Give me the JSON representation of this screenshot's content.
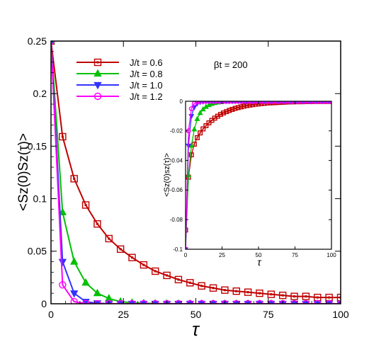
{
  "chart_data": [
    {
      "type": "line",
      "panel": "main",
      "xlabel": "τ",
      "ylabel": "<Sz(0)Sz(τ)>",
      "xlim": [
        0,
        100
      ],
      "ylim": [
        0,
        0.25
      ],
      "xticks": [
        "0",
        "25",
        "50",
        "75",
        "100"
      ],
      "yticks": [
        "0",
        "0.05",
        "0.1",
        "0.15",
        "0.2",
        "0.25"
      ],
      "annotation": "βt = 200",
      "legend_position": "top-left",
      "grid": false,
      "x": [
        0,
        4,
        8,
        12,
        16,
        20,
        24,
        28,
        32,
        36,
        40,
        44,
        48,
        52,
        56,
        60,
        64,
        68,
        72,
        76,
        80,
        84,
        88,
        92,
        96,
        100
      ],
      "series": [
        {
          "name": "J/t = 0.6",
          "color": "#c00000",
          "marker": "square",
          "values": [
            0.25,
            0.159,
            0.119,
            0.094,
            0.076,
            0.062,
            0.052,
            0.044,
            0.037,
            0.031,
            0.027,
            0.023,
            0.02,
            0.017,
            0.015,
            0.013,
            0.012,
            0.011,
            0.01,
            0.009,
            0.008,
            0.007,
            0.007,
            0.006,
            0.006,
            0.006
          ]
        },
        {
          "name": "J/t = 0.8",
          "color": "#00c000",
          "marker": "triangle-up",
          "values": [
            0.25,
            0.087,
            0.04,
            0.02,
            0.01,
            0.005,
            0.002,
            0.001,
            0.0005,
            0.0002,
            0.0001,
            0,
            0,
            0,
            0,
            0,
            0,
            0,
            0,
            0,
            0,
            0,
            0,
            0,
            0,
            0
          ]
        },
        {
          "name": "J/t = 1.0",
          "color": "#3333ff",
          "marker": "triangle-down",
          "values": [
            0.25,
            0.04,
            0.01,
            0.002,
            0.0005,
            0.0001,
            0,
            0,
            0,
            0,
            0,
            0,
            0,
            0,
            0,
            0,
            0,
            0,
            0,
            0,
            0,
            0,
            0,
            0,
            0,
            0
          ]
        },
        {
          "name": "J/t = 1.2",
          "color": "#ff00ff",
          "marker": "circle",
          "values": [
            0.25,
            0.018,
            0.002,
            0.0002,
            0,
            0,
            0,
            0,
            0,
            0,
            0,
            0,
            0,
            0,
            0,
            0,
            0,
            0,
            0,
            0,
            0,
            0,
            0,
            0,
            0,
            0
          ]
        }
      ]
    },
    {
      "type": "line",
      "panel": "inset",
      "xlabel": "τ",
      "ylabel": "<Sz(0)sz(τ)>",
      "xlim": [
        0,
        100
      ],
      "ylim": [
        -0.1,
        0
      ],
      "xticks": [
        "0",
        "25",
        "50",
        "75",
        "100"
      ],
      "yticks": [
        "-0.1",
        "-0.08",
        "-0.06",
        "-0.04",
        "-0.02",
        "0"
      ],
      "x": [
        0,
        2,
        4,
        6,
        8,
        10,
        12,
        14,
        16,
        18,
        20,
        22,
        24,
        26,
        28,
        30,
        32,
        34,
        36,
        38,
        40,
        42,
        44,
        46,
        48,
        50,
        52,
        54,
        56,
        58,
        60,
        62,
        64,
        66,
        68,
        70,
        72,
        74,
        76,
        78,
        80,
        82,
        84,
        86,
        88,
        90,
        92,
        94,
        96,
        98,
        100
      ],
      "series": [
        {
          "name": "J/t = 0.6",
          "color": "#c00000",
          "marker": "square",
          "values": [
            -0.087,
            -0.0513,
            -0.0362,
            -0.029,
            -0.0246,
            -0.0214,
            -0.0187,
            -0.0165,
            -0.0146,
            -0.0129,
            -0.0114,
            -0.0101,
            -0.0089,
            -0.0079,
            -0.007,
            -0.0062,
            -0.0055,
            -0.0048,
            -0.0043,
            -0.0038,
            -0.0033,
            -0.0029,
            -0.0026,
            -0.0023,
            -0.002,
            -0.0018,
            -0.0016,
            -0.0014,
            -0.0012,
            -0.0011,
            -0.001,
            -0.0009,
            -0.0008,
            -0.0007,
            -0.0006,
            -0.0005,
            -0.0004,
            -0.0004,
            -0.0003,
            -0.0003,
            -0.0003,
            -0.0002,
            -0.0002,
            -0.0002,
            -0.0001,
            -0.0001,
            -0.0001,
            -0.0001,
            -0.0001,
            -0.0001,
            -0.0001
          ]
        },
        {
          "name": "J/t = 0.8",
          "color": "#00c000",
          "marker": "triangle-up",
          "values": [
            -0.1,
            -0.05,
            -0.03,
            -0.019,
            -0.012,
            -0.008,
            -0.0055,
            -0.0038,
            -0.0026,
            -0.0018,
            -0.0012,
            -0.0008,
            -0.0005,
            -0.0003,
            -0.0002,
            -0.0001,
            0,
            0,
            0,
            0,
            0,
            0,
            0,
            0,
            0,
            0,
            0,
            0,
            0,
            0,
            0,
            0,
            0,
            0,
            0,
            0,
            0,
            0,
            0,
            0,
            0,
            0,
            0,
            0,
            0,
            0,
            0,
            0,
            0,
            0,
            0
          ]
        },
        {
          "name": "J/t = 1.0",
          "color": "#3333ff",
          "marker": "triangle-down",
          "values": [
            -0.1,
            -0.03,
            -0.01,
            -0.004,
            -0.0015,
            -0.0006,
            -0.0002,
            -0.0001,
            0,
            0,
            0,
            0,
            0,
            0,
            0,
            0,
            0,
            0,
            0,
            0,
            0,
            0,
            0,
            0,
            0,
            0,
            0,
            0,
            0,
            0,
            0,
            0,
            0,
            0,
            0,
            0,
            0,
            0,
            0,
            0,
            0,
            0,
            0,
            0,
            0,
            0,
            0,
            0,
            0,
            0,
            0
          ]
        },
        {
          "name": "J/t = 1.2",
          "color": "#ff00ff",
          "marker": "circle",
          "values": [
            -0.1,
            -0.02,
            -0.005,
            -0.0015,
            -0.0005,
            -0.0002,
            -0.0001,
            0,
            0,
            0,
            0,
            0,
            0,
            0,
            0,
            0,
            0,
            0,
            0,
            0,
            0,
            0,
            0,
            0,
            0,
            0,
            0,
            0,
            0,
            0,
            0,
            0,
            0,
            0,
            0,
            0,
            0,
            0,
            0,
            0,
            0,
            0,
            0,
            0,
            0,
            0,
            0,
            0,
            0,
            0,
            0
          ]
        }
      ]
    }
  ]
}
